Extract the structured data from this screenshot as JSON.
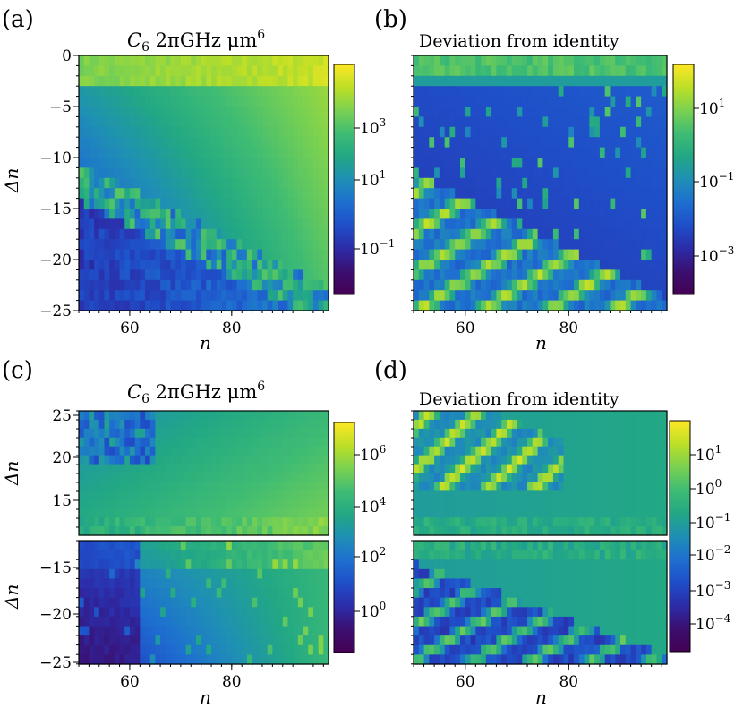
{
  "colors": {
    "map": [
      "#440154",
      "#3b0f70",
      "#2c2ca8",
      "#1f4ec8",
      "#1e6fd0",
      "#1f8fb5",
      "#22a884",
      "#3fbc73",
      "#7ad151",
      "#bddf26",
      "#fde725"
    ]
  },
  "chart_data": [
    {
      "type": "heatmap",
      "panel": "(a)",
      "title": "C6 2πGHz μm6",
      "title_parts": {
        "sym": "C",
        "sub": "6",
        "unit": " 2πGHz μm",
        "sup": "6"
      },
      "xlabel": "n",
      "ylabel": "Δn",
      "xlim": [
        50,
        99
      ],
      "ylim": [
        -25,
        0
      ],
      "xticks": [
        "60",
        "80"
      ],
      "yticks": [
        "0",
        "−5",
        "−10",
        "−15",
        "−20",
        "−25"
      ],
      "colorbar": {
        "scale": "log",
        "ticks": [
          {
            "base": "10",
            "exp": "3"
          },
          {
            "base": "10",
            "exp": "1"
          },
          {
            "base": "10",
            "exp": "−1"
          }
        ]
      },
      "description": "diagonal band of low values from (50,-13) to (99,-25); strong values near Δn=-1..-3"
    },
    {
      "type": "heatmap",
      "panel": "(b)",
      "title": "Deviation from identity",
      "xlabel": "n",
      "ylabel": "",
      "xlim": [
        50,
        99
      ],
      "ylim": [
        -25,
        0
      ],
      "xticks": [
        "60",
        "80"
      ],
      "yticks": [],
      "colorbar": {
        "scale": "log",
        "ticks": [
          {
            "base": "10",
            "exp": "1"
          },
          {
            "base": "10",
            "exp": "−1"
          },
          {
            "base": "10",
            "exp": "−3"
          }
        ]
      }
    },
    {
      "type": "heatmap",
      "panel": "(c)",
      "title": "C6 2πGHz μm6",
      "title_parts": {
        "sym": "C",
        "sub": "6",
        "unit": " 2πGHz μm",
        "sup": "6"
      },
      "xlabel": "n",
      "ylabel": "Δn",
      "xlim": [
        50,
        99
      ],
      "ylim_top": [
        11,
        25
      ],
      "ylim_bottom": [
        -25,
        -12
      ],
      "xticks": [
        "60",
        "80"
      ],
      "yticks_top": [
        "25",
        "20",
        "15"
      ],
      "yticks_bottom": [
        "−15",
        "−20",
        "−25"
      ],
      "colorbar": {
        "scale": "log",
        "ticks": [
          {
            "base": "10",
            "exp": "6"
          },
          {
            "base": "10",
            "exp": "4"
          },
          {
            "base": "10",
            "exp": "2"
          },
          {
            "base": "10",
            "exp": "0"
          }
        ]
      }
    },
    {
      "type": "heatmap",
      "panel": "(d)",
      "title": "Deviation from identity",
      "xlabel": "n",
      "ylabel": "",
      "xlim": [
        50,
        99
      ],
      "ylim_top": [
        11,
        25
      ],
      "ylim_bottom": [
        -25,
        -12
      ],
      "xticks": [
        "60",
        "80"
      ],
      "yticks_top": [],
      "yticks_bottom": [],
      "colorbar": {
        "scale": "log",
        "ticks": [
          {
            "base": "10",
            "exp": "1"
          },
          {
            "base": "10",
            "exp": "0"
          },
          {
            "base": "10",
            "exp": "−1"
          },
          {
            "base": "10",
            "exp": "−2"
          },
          {
            "base": "10",
            "exp": "−3"
          },
          {
            "base": "10",
            "exp": "−4"
          }
        ]
      }
    }
  ]
}
